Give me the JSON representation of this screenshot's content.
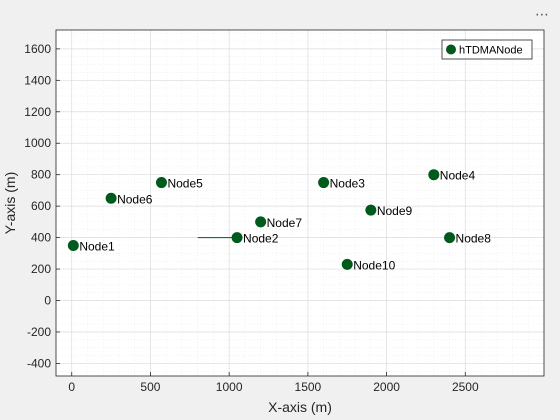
{
  "toolbar": {
    "menu_glyph": "⋯",
    "menu_icon": "more-options-icon"
  },
  "colors": {
    "marker": "#005a1c",
    "background": "#f0f0f0",
    "axes_bg": "#ffffff",
    "grid_major": "#dcdcdc",
    "grid_minor": "#ebebeb",
    "axis": "#262626"
  },
  "chart_data": {
    "type": "scatter",
    "title": "",
    "xlabel": "X-axis (m)",
    "ylabel": "Y-axis (m)",
    "xlim": [
      -100,
      3000
    ],
    "ylim": [
      -480,
      1720
    ],
    "xticks": [
      0,
      500,
      1000,
      1500,
      2000,
      2500
    ],
    "yticks": [
      -400,
      -200,
      0,
      200,
      400,
      600,
      800,
      1000,
      1200,
      1400,
      1600
    ],
    "grid": true,
    "minor_grid": true,
    "legend": {
      "placement": "top-right",
      "entries": [
        "hTDMANode"
      ]
    },
    "series": [
      {
        "name": "hTDMANode",
        "points": [
          {
            "label": "Node1",
            "x": 10,
            "y": 350
          },
          {
            "label": "Node2",
            "x": 1050,
            "y": 400
          },
          {
            "label": "Node3",
            "x": 1600,
            "y": 750
          },
          {
            "label": "Node4",
            "x": 2300,
            "y": 800
          },
          {
            "label": "Node5",
            "x": 570,
            "y": 750
          },
          {
            "label": "Node6",
            "x": 250,
            "y": 650
          },
          {
            "label": "Node7",
            "x": 1200,
            "y": 500
          },
          {
            "label": "Node8",
            "x": 2400,
            "y": 400
          },
          {
            "label": "Node9",
            "x": 1900,
            "y": 575
          },
          {
            "label": "Node10",
            "x": 1750,
            "y": 230
          }
        ]
      }
    ],
    "annotations": [
      {
        "type": "line",
        "x": [
          800,
          1050
        ],
        "y": [
          400,
          400
        ]
      }
    ]
  }
}
